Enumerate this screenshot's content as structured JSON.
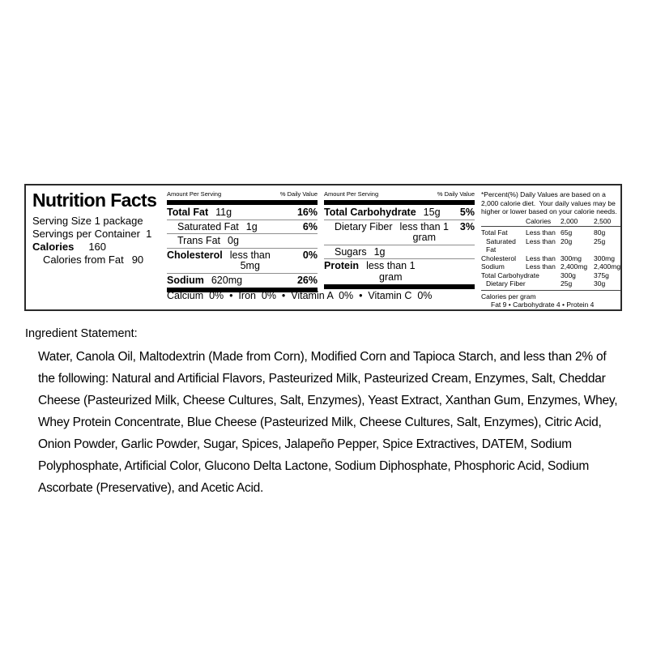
{
  "nutrition_label": {
    "title": "Nutrition Facts",
    "serving_size": "Serving Size 1 package",
    "servings_per_container": "Servings per Container  1",
    "calories": {
      "label": "Calories",
      "value": "160"
    },
    "calories_from_fat": {
      "label": "Calories from Fat",
      "value": "90"
    },
    "panel1": {
      "header_left": "Amount Per Serving",
      "header_right": "% Daily Value",
      "rows": [
        {
          "name": "Total Fat",
          "value": "11g",
          "dv": "16%"
        },
        {
          "name": "Saturated Fat",
          "value": "1g",
          "dv": "6%"
        },
        {
          "name": "Trans Fat",
          "value": "0g",
          "dv": ""
        },
        {
          "name": "Cholesterol",
          "value": "less than",
          "value2": "5mg",
          "dv": "0%"
        },
        {
          "name": "Sodium",
          "value": "620mg",
          "dv": "26%"
        }
      ]
    },
    "panel2": {
      "header_left": "Amount Per Serving",
      "header_right": "% Daily Value",
      "rows": [
        {
          "name": "Total Carbohydrate",
          "value": "15g",
          "dv": "5%"
        },
        {
          "name": "Dietary Fiber",
          "value": "less than 1",
          "value2": "gram",
          "dv": "3%"
        },
        {
          "name": "Sugars",
          "value": "1g",
          "dv": ""
        },
        {
          "name": "Protein",
          "value": "less than 1",
          "value2": "gram",
          "dv": ""
        }
      ]
    },
    "vitamins_line": "Calcium  0%  •  Iron  0%  •  Vitamin A  0%  •  Vitamin C  0%",
    "footnote": {
      "text": "*Percent(%) Daily Values are based on a 2,000 calorie diet.  Your daily values may be higher or lower based on your calorie needs.",
      "table": {
        "header": {
          "calories": "Calories",
          "v2000": "2,000",
          "v2500": "2,500"
        },
        "rows": [
          {
            "name": "Total Fat",
            "qualifier": "Less than",
            "v2000": "65g",
            "v2500": "80g"
          },
          {
            "name": "Saturated Fat",
            "qualifier": "Less than",
            "v2000": "20g",
            "v2500": "25g"
          },
          {
            "name": "Cholesterol",
            "qualifier": "Less than",
            "v2000": "300mg",
            "v2500": "300mg"
          },
          {
            "name": "Sodium",
            "qualifier": "Less than",
            "v2000": "2,400mg",
            "v2500": "2,400mg"
          },
          {
            "name": "Total Carbohydrate",
            "qualifier": "",
            "v2000": "300g",
            "v2500": "375g"
          },
          {
            "name": "Dietary Fiber",
            "qualifier": "",
            "v2000": "25g",
            "v2500": "30g"
          }
        ]
      },
      "calories_per_gram": {
        "label": "Calories per gram",
        "values": "Fat 9  •  Carbohydrate 4  •  Protein 4"
      }
    }
  },
  "ingredient_statement": {
    "heading": "Ingredient Statement:",
    "body": "Water, Canola Oil, Maltodextrin (Made from Corn), Modified Corn and Tapioca Starch, and less than 2% of the following: Natural and Artificial Flavors, Pasteurized Milk, Pasteurized Cream, Enzymes, Salt, Cheddar Cheese (Pasteurized Milk, Cheese Cultures, Salt, Enzymes), Yeast Extract, Xanthan Gum, Enzymes, Whey, Whey Protein Concentrate, Blue Cheese (Pasteurized Milk, Cheese Cultures, Salt, Enzymes), Citric Acid, Onion Powder, Garlic Powder, Sugar, Spices, Jalapeño Pepper, Spice Extractives, DATEM, Sodium Polyphosphate, Artificial Color, Glucono Delta Lactone, Sodium Diphosphate, Phosphoric Acid, Sodium Ascorbate (Preservative), and Acetic Acid."
  }
}
